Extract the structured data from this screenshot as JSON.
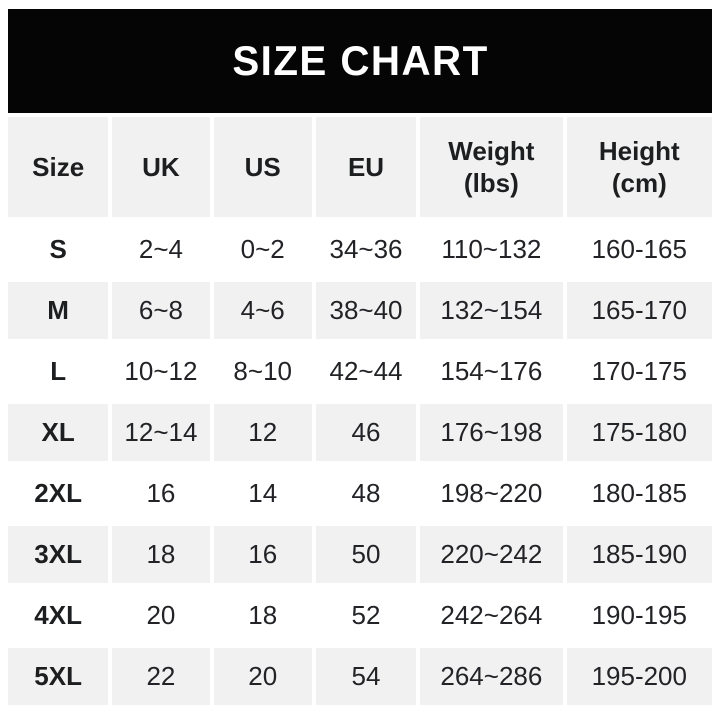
{
  "banner": {
    "title": "SIZE CHART",
    "bg_color": "#050505",
    "text_color": "#ffffff"
  },
  "table": {
    "column_keys": [
      "size",
      "uk",
      "us",
      "eu",
      "weight-lbs",
      "height-cm"
    ],
    "header_lines": [
      [
        "Size"
      ],
      [
        "UK"
      ],
      [
        "US"
      ],
      [
        "EU"
      ],
      [
        "Weight",
        "(lbs)"
      ],
      [
        "Height",
        "(cm)"
      ]
    ],
    "rows": [
      [
        "S",
        "2~4",
        "0~2",
        "34~36",
        "110~132",
        "160-165"
      ],
      [
        "M",
        "6~8",
        "4~6",
        "38~40",
        "132~154",
        "165-170"
      ],
      [
        "L",
        "10~12",
        "8~10",
        "42~44",
        "154~176",
        "170-175"
      ],
      [
        "XL",
        "12~14",
        "12",
        "46",
        "176~198",
        "175-180"
      ],
      [
        "2XL",
        "16",
        "14",
        "48",
        "198~220",
        "180-185"
      ],
      [
        "3XL",
        "18",
        "16",
        "50",
        "220~242",
        "185-190"
      ],
      [
        "4XL",
        "20",
        "18",
        "52",
        "242~264",
        "190-195"
      ],
      [
        "5XL",
        "22",
        "20",
        "54",
        "264~286",
        "195-200"
      ]
    ],
    "colors": {
      "cell_gray": "#f1f1f1",
      "row_white": "#ffffff",
      "text": "#222326"
    }
  }
}
